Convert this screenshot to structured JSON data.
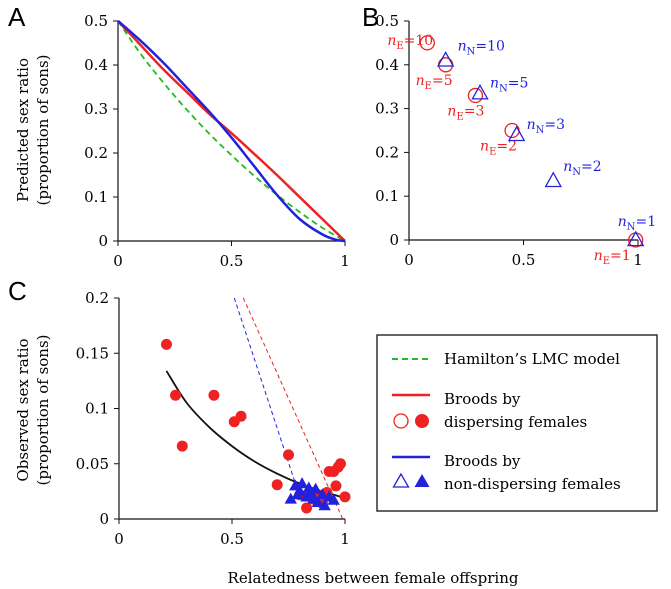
{
  "figure": {
    "panel_labels": {
      "a": "A",
      "b": "B",
      "c": "C"
    },
    "ylabel_predicted_line1": "Predicted sex ratio",
    "ylabel_predicted_line2": "(proportion of sons)",
    "ylabel_observed_line1": "Observed sex ratio",
    "ylabel_observed_line2": "(proportion of sons)",
    "xlabel": "Relatedness between female offspring",
    "colors": {
      "red": "#ee2222",
      "blue": "#2222dd",
      "green": "#22bb22",
      "black": "#111111"
    }
  },
  "legend": {
    "hamilton": "Hamilton’s LMC model",
    "dispersing_line1": "Broods by",
    "dispersing_line2": "dispersing females",
    "nondispersing_line1": "Broods by",
    "nondispersing_line2": "non-dispersing females"
  },
  "chart_data": [
    {
      "panel": "A",
      "type": "line",
      "xlim": [
        0,
        1
      ],
      "ylim": [
        0,
        0.5
      ],
      "xticks": [
        "0",
        "0.5",
        "1"
      ],
      "yticks": [
        "0",
        "0.1",
        "0.2",
        "0.3",
        "0.4",
        "0.5"
      ],
      "series": [
        {
          "name": "Hamilton’s LMC model",
          "color": "green",
          "dash": true,
          "x": [
            0,
            0.1,
            0.2,
            0.3,
            0.4,
            0.5,
            0.6,
            0.7,
            0.8,
            0.9,
            1
          ],
          "y": [
            0.5,
            0.425,
            0.36,
            0.3,
            0.245,
            0.195,
            0.148,
            0.105,
            0.066,
            0.03,
            0
          ]
        },
        {
          "name": "Broods by dispersing females",
          "color": "red",
          "x": [
            0,
            0.1,
            0.2,
            0.3,
            0.4,
            0.5,
            0.6,
            0.7,
            0.8,
            0.9,
            1
          ],
          "y": [
            0.5,
            0.445,
            0.39,
            0.34,
            0.29,
            0.245,
            0.198,
            0.15,
            0.1,
            0.05,
            0
          ]
        },
        {
          "name": "Broods by non-dispersing females",
          "color": "blue",
          "x": [
            0,
            0.1,
            0.2,
            0.3,
            0.4,
            0.5,
            0.6,
            0.7,
            0.8,
            0.9,
            0.96,
            1
          ],
          "y": [
            0.5,
            0.455,
            0.405,
            0.35,
            0.295,
            0.235,
            0.17,
            0.105,
            0.05,
            0.015,
            0.003,
            0
          ]
        }
      ]
    },
    {
      "panel": "B",
      "type": "scatter",
      "xlim": [
        0,
        1
      ],
      "ylim": [
        0,
        0.5
      ],
      "xticks": [
        "0",
        "0.5",
        "1"
      ],
      "yticks": [
        "0",
        "0.1",
        "0.2",
        "0.3",
        "0.4",
        "0.5"
      ],
      "series": [
        {
          "name": "Broods by dispersing females",
          "marker": "circle",
          "color": "red",
          "points": [
            {
              "x": 0.08,
              "y": 0.45,
              "label": "10"
            },
            {
              "x": 0.16,
              "y": 0.4,
              "label": "5"
            },
            {
              "x": 0.29,
              "y": 0.33,
              "label": "3"
            },
            {
              "x": 0.45,
              "y": 0.25,
              "label": "2"
            },
            {
              "x": 0.99,
              "y": 0.0,
              "label": "1"
            }
          ]
        },
        {
          "name": "Broods by non-dispersing females",
          "marker": "triangle",
          "color": "blue",
          "points": [
            {
              "x": 0.16,
              "y": 0.41,
              "label": "10"
            },
            {
              "x": 0.31,
              "y": 0.335,
              "label": "5"
            },
            {
              "x": 0.47,
              "y": 0.24,
              "label": "3"
            },
            {
              "x": 0.63,
              "y": 0.135,
              "label": "2"
            },
            {
              "x": 0.99,
              "y": 0.0,
              "label": "1"
            }
          ]
        }
      ],
      "annotation_prefix": {
        "dispersing": "n",
        "dispersing_sub": "E",
        "nondispersing": "n",
        "nondispersing_sub": "N"
      }
    },
    {
      "panel": "C",
      "type": "scatter",
      "xlim": [
        0,
        1
      ],
      "ylim": [
        0,
        0.2
      ],
      "xticks": [
        "0",
        "0.5",
        "1"
      ],
      "yticks": [
        "0",
        "0.05",
        "0.1",
        "0.15",
        "0.2"
      ],
      "series": [
        {
          "name": "Broods by dispersing females",
          "marker": "circle-filled",
          "color": "red",
          "x": [
            0.21,
            0.25,
            0.28,
            0.42,
            0.51,
            0.54,
            0.75,
            0.7,
            0.8,
            0.83,
            0.86,
            0.88,
            0.9,
            0.92,
            0.93,
            0.95,
            0.96,
            0.97,
            0.98,
            1.0
          ],
          "y": [
            0.158,
            0.112,
            0.066,
            0.112,
            0.088,
            0.093,
            0.058,
            0.031,
            0.022,
            0.01,
            0.018,
            0.022,
            0.014,
            0.024,
            0.043,
            0.043,
            0.03,
            0.047,
            0.05,
            0.02
          ]
        },
        {
          "name": "Broods by non-dispersing females",
          "marker": "triangle-filled",
          "color": "blue",
          "x": [
            0.76,
            0.78,
            0.79,
            0.8,
            0.81,
            0.83,
            0.84,
            0.85,
            0.86,
            0.87,
            0.88,
            0.9,
            0.91,
            0.93,
            0.95
          ],
          "y": [
            0.018,
            0.03,
            0.022,
            0.025,
            0.032,
            0.02,
            0.028,
            0.023,
            0.018,
            0.027,
            0.015,
            0.022,
            0.012,
            0.02,
            0.017
          ]
        },
        {
          "name": "Fit",
          "type": "line",
          "color": "black",
          "x": [
            0.21,
            0.3,
            0.4,
            0.5,
            0.6,
            0.7,
            0.8,
            0.9,
            1.0
          ],
          "y": [
            0.134,
            0.105,
            0.083,
            0.066,
            0.052,
            0.041,
            0.032,
            0.025,
            0.019
          ]
        },
        {
          "name": "Non-dispersing prediction",
          "type": "line",
          "dash": true,
          "color": "blue",
          "x": [
            0.51,
            0.8
          ],
          "y": [
            0.2,
            0.02
          ]
        },
        {
          "name": "Dispersing prediction",
          "type": "line",
          "dash": true,
          "color": "red",
          "x": [
            0.55,
            0.99
          ],
          "y": [
            0.2,
            0.0
          ]
        }
      ]
    }
  ]
}
